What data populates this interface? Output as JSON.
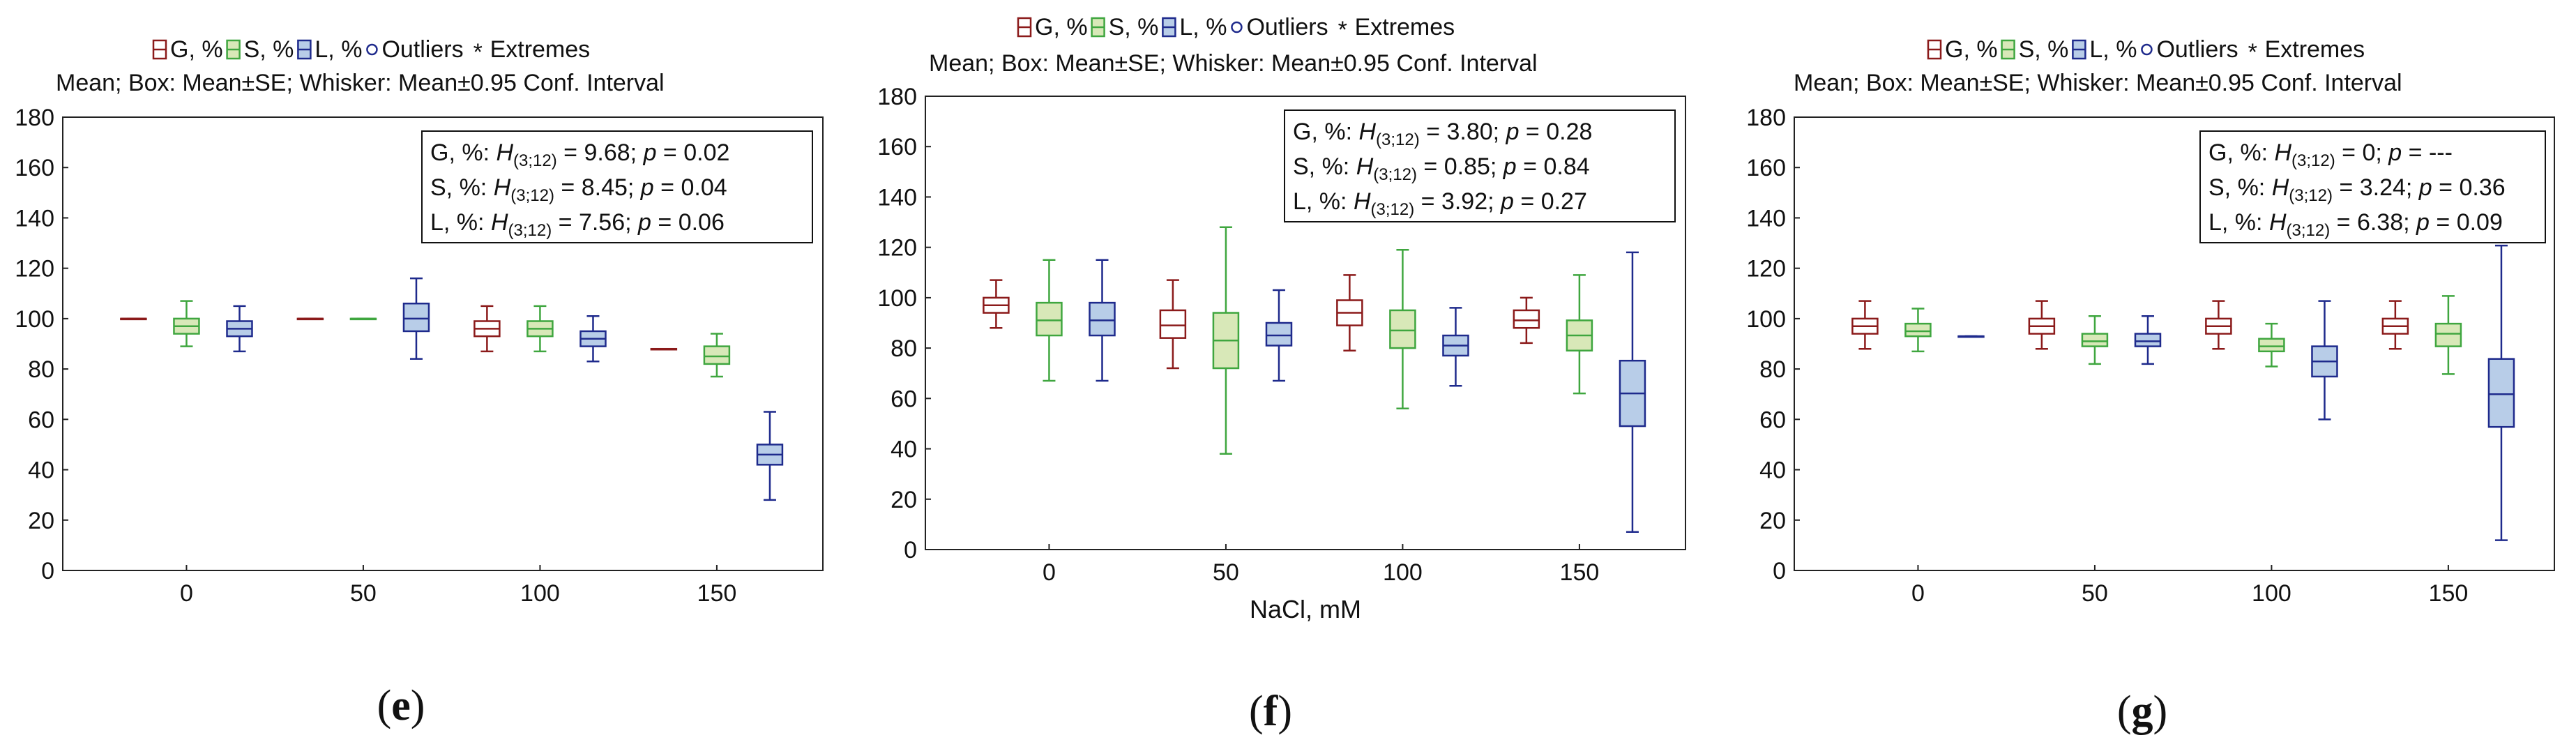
{
  "legend": {
    "g": "G, %",
    "s": "S, %",
    "l": "L, %",
    "outliers": "Outliers",
    "extremes": "Extremes"
  },
  "subtitle": "Mean; Box: Mean±SE; Whisker: Mean±0.95 Conf. Interval",
  "colors": {
    "g": "#8b1a1a",
    "s": "#3fa63f",
    "l": "#1e2a8c",
    "g_fill": "#ffffff",
    "s_fill": "#d8e8b8",
    "l_fill": "#b8cde8"
  },
  "chart_data": [
    {
      "type": "box",
      "panel": "e",
      "label_open": "(",
      "label_letter": "e",
      "label_close": ")",
      "xlabel": "",
      "categories": [
        "0",
        "50",
        "100",
        "150"
      ],
      "yticks": [
        "0",
        "20",
        "40",
        "60",
        "80",
        "100",
        "120",
        "140",
        "160",
        "180"
      ],
      "ylim": [
        0,
        180
      ],
      "stats": [
        {
          "name": "G, %:",
          "h": "H",
          "sub": "(3;12)",
          "rest": " = 9.68; ",
          "p": "p",
          "pval": " = 0.02"
        },
        {
          "name": "S, %:",
          "h": "H",
          "sub": "(3;12)",
          "rest": " = 8.45; ",
          "p": "p",
          "pval": " = 0.04"
        },
        {
          "name": "L, %:",
          "h": "H",
          "sub": "(3;12)",
          "rest": " = 7.56; ",
          "p": "p",
          "pval": " = 0.06"
        }
      ],
      "series": [
        {
          "name": "G, %",
          "boxes": [
            {
              "x": -15,
              "mean": 100,
              "se_lo": 100,
              "se_hi": 100,
              "ci_lo": 100,
              "ci_hi": 100
            },
            {
              "x": 35,
              "mean": 100,
              "se_lo": 100,
              "se_hi": 100,
              "ci_lo": 100,
              "ci_hi": 100
            },
            {
              "x": 85,
              "mean": 96,
              "se_lo": 93,
              "se_hi": 99,
              "ci_lo": 87,
              "ci_hi": 105
            },
            {
              "x": 135,
              "mean": 88,
              "se_lo": 88,
              "se_hi": 88,
              "ci_lo": 88,
              "ci_hi": 88
            }
          ]
        },
        {
          "name": "S, %",
          "boxes": [
            {
              "x": 0,
              "mean": 97,
              "se_lo": 94,
              "se_hi": 100,
              "ci_lo": 89,
              "ci_hi": 107
            },
            {
              "x": 50,
              "mean": 100,
              "se_lo": 100,
              "se_hi": 100,
              "ci_lo": 100,
              "ci_hi": 100
            },
            {
              "x": 100,
              "mean": 96,
              "se_lo": 93,
              "se_hi": 99,
              "ci_lo": 87,
              "ci_hi": 105
            },
            {
              "x": 150,
              "mean": 85,
              "se_lo": 82,
              "se_hi": 89,
              "ci_lo": 77,
              "ci_hi": 94
            }
          ]
        },
        {
          "name": "L, %",
          "boxes": [
            {
              "x": 15,
              "mean": 96,
              "se_lo": 93,
              "se_hi": 99,
              "ci_lo": 87,
              "ci_hi": 105
            },
            {
              "x": 65,
              "mean": 100,
              "se_lo": 95,
              "se_hi": 106,
              "ci_lo": 84,
              "ci_hi": 116
            },
            {
              "x": 115,
              "mean": 92,
              "se_lo": 89,
              "se_hi": 95,
              "ci_lo": 83,
              "ci_hi": 101
            },
            {
              "x": 165,
              "mean": 46,
              "se_lo": 42,
              "se_hi": 50,
              "ci_lo": 28,
              "ci_hi": 63
            }
          ]
        }
      ]
    },
    {
      "type": "box",
      "panel": "f",
      "label_open": "(",
      "label_letter": "f",
      "label_close": ")",
      "xlabel": "NaCl, mM",
      "categories": [
        "0",
        "50",
        "100",
        "150"
      ],
      "yticks": [
        "0",
        "20",
        "40",
        "60",
        "80",
        "100",
        "120",
        "140",
        "160",
        "180"
      ],
      "ylim": [
        0,
        180
      ],
      "stats": [
        {
          "name": "G, %:",
          "h": "H",
          "sub": "(3;12)",
          "rest": " = 3.80; ",
          "p": "p",
          "pval": " = 0.28"
        },
        {
          "name": "S, %:",
          "h": "H",
          "sub": "(3;12)",
          "rest": " = 0.85; ",
          "p": "p",
          "pval": " = 0.84"
        },
        {
          "name": "L, %:",
          "h": "H",
          "sub": "(3;12)",
          "rest": " = 3.92; ",
          "p": "p",
          "pval": " = 0.27"
        }
      ],
      "series": [
        {
          "name": "G, %",
          "boxes": [
            {
              "x": -15,
              "mean": 97,
              "se_lo": 94,
              "se_hi": 100,
              "ci_lo": 88,
              "ci_hi": 107
            },
            {
              "x": 35,
              "mean": 89,
              "se_lo": 84,
              "se_hi": 95,
              "ci_lo": 72,
              "ci_hi": 107
            },
            {
              "x": 85,
              "mean": 94,
              "se_lo": 89,
              "se_hi": 99,
              "ci_lo": 79,
              "ci_hi": 109
            },
            {
              "x": 135,
              "mean": 91,
              "se_lo": 88,
              "se_hi": 95,
              "ci_lo": 82,
              "ci_hi": 100
            }
          ]
        },
        {
          "name": "S, %",
          "boxes": [
            {
              "x": 0,
              "mean": 91,
              "se_lo": 85,
              "se_hi": 98,
              "ci_lo": 67,
              "ci_hi": 115
            },
            {
              "x": 50,
              "mean": 83,
              "se_lo": 72,
              "se_hi": 94,
              "ci_lo": 38,
              "ci_hi": 128
            },
            {
              "x": 100,
              "mean": 87,
              "se_lo": 80,
              "se_hi": 95,
              "ci_lo": 56,
              "ci_hi": 119
            },
            {
              "x": 150,
              "mean": 85,
              "se_lo": 79,
              "se_hi": 91,
              "ci_lo": 62,
              "ci_hi": 109
            }
          ]
        },
        {
          "name": "L, %",
          "boxes": [
            {
              "x": 15,
              "mean": 91,
              "se_lo": 85,
              "se_hi": 98,
              "ci_lo": 67,
              "ci_hi": 115
            },
            {
              "x": 65,
              "mean": 85,
              "se_lo": 81,
              "se_hi": 90,
              "ci_lo": 67,
              "ci_hi": 103
            },
            {
              "x": 115,
              "mean": 81,
              "se_lo": 77,
              "se_hi": 85,
              "ci_lo": 65,
              "ci_hi": 96
            },
            {
              "x": 165,
              "mean": 62,
              "se_lo": 49,
              "se_hi": 75,
              "ci_lo": 7,
              "ci_hi": 118
            }
          ]
        }
      ]
    },
    {
      "type": "box",
      "panel": "g",
      "label_open": "(",
      "label_letter": "g",
      "label_close": ")",
      "xlabel": "",
      "categories": [
        "0",
        "50",
        "100",
        "150"
      ],
      "yticks": [
        "0",
        "20",
        "40",
        "60",
        "80",
        "100",
        "120",
        "140",
        "160",
        "180"
      ],
      "ylim": [
        0,
        180
      ],
      "stats": [
        {
          "name": "G, %:",
          "h": "H",
          "sub": "(3;12)",
          "rest": " = 0; ",
          "p": "p",
          "pval": " = ---"
        },
        {
          "name": "S, %:",
          "h": "H",
          "sub": "(3;12)",
          "rest": " = 3.24; ",
          "p": "p",
          "pval": " = 0.36"
        },
        {
          "name": "L, %:",
          "h": "H",
          "sub": "(3;12)",
          "rest": " = 6.38; ",
          "p": "p",
          "pval": " = 0.09"
        }
      ],
      "series": [
        {
          "name": "G, %",
          "boxes": [
            {
              "x": -15,
              "mean": 97,
              "se_lo": 94,
              "se_hi": 100,
              "ci_lo": 88,
              "ci_hi": 107
            },
            {
              "x": 35,
              "mean": 97,
              "se_lo": 94,
              "se_hi": 100,
              "ci_lo": 88,
              "ci_hi": 107
            },
            {
              "x": 85,
              "mean": 97,
              "se_lo": 94,
              "se_hi": 100,
              "ci_lo": 88,
              "ci_hi": 107
            },
            {
              "x": 135,
              "mean": 97,
              "se_lo": 94,
              "se_hi": 100,
              "ci_lo": 88,
              "ci_hi": 107
            }
          ]
        },
        {
          "name": "S, %",
          "boxes": [
            {
              "x": 0,
              "mean": 95,
              "se_lo": 93,
              "se_hi": 98,
              "ci_lo": 87,
              "ci_hi": 104
            },
            {
              "x": 50,
              "mean": 91,
              "se_lo": 89,
              "se_hi": 94,
              "ci_lo": 82,
              "ci_hi": 101
            },
            {
              "x": 100,
              "mean": 89,
              "se_lo": 87,
              "se_hi": 92,
              "ci_lo": 81,
              "ci_hi": 98
            },
            {
              "x": 150,
              "mean": 94,
              "se_lo": 89,
              "se_hi": 98,
              "ci_lo": 78,
              "ci_hi": 109
            }
          ]
        },
        {
          "name": "L, %",
          "boxes": [
            {
              "x": 15,
              "mean": 93,
              "se_lo": 93,
              "se_hi": 93,
              "ci_lo": 93,
              "ci_hi": 93
            },
            {
              "x": 65,
              "mean": 91,
              "se_lo": 89,
              "se_hi": 94,
              "ci_lo": 82,
              "ci_hi": 101
            },
            {
              "x": 115,
              "mean": 83,
              "se_lo": 77,
              "se_hi": 89,
              "ci_lo": 60,
              "ci_hi": 107
            },
            {
              "x": 165,
              "mean": 70,
              "se_lo": 57,
              "se_hi": 84,
              "ci_lo": 12,
              "ci_hi": 129
            }
          ]
        }
      ]
    }
  ]
}
